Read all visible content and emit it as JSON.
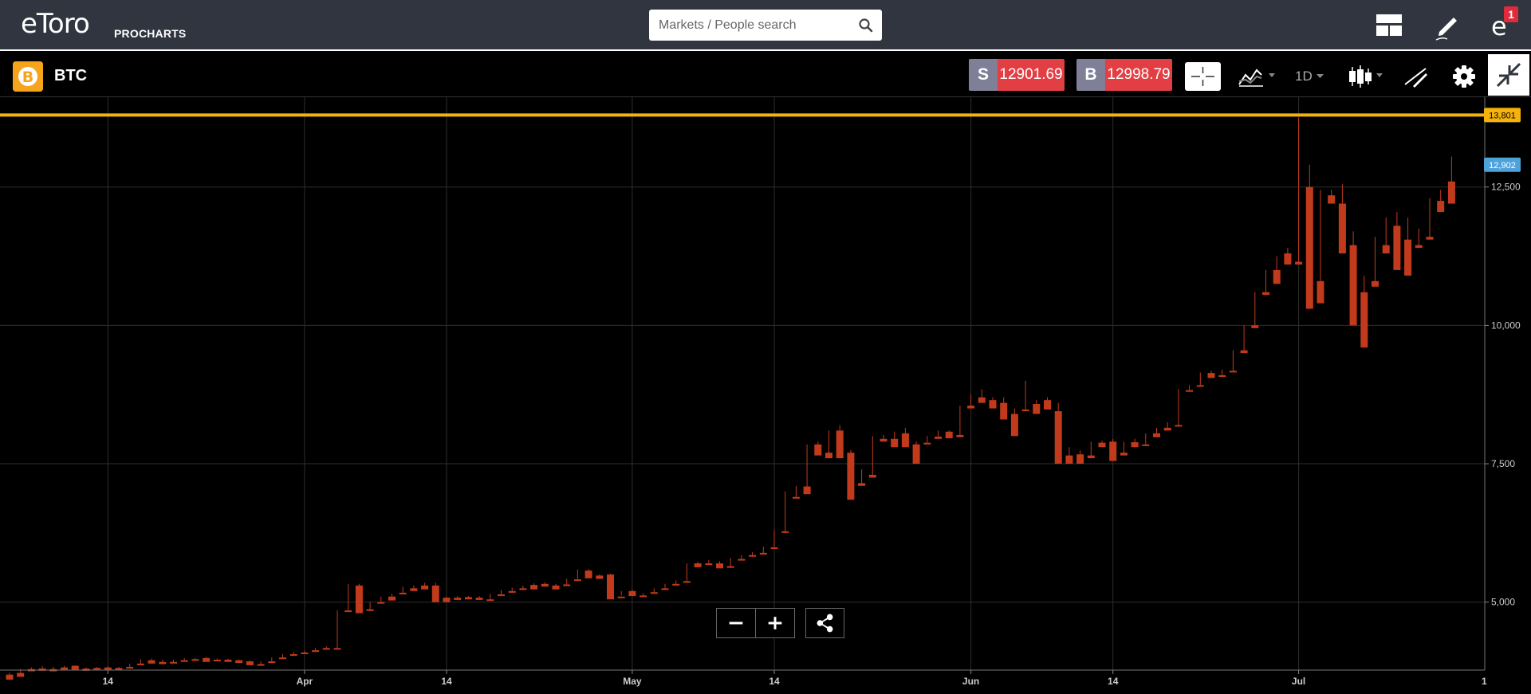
{
  "header": {
    "logo_text": "eToro",
    "logo_sub": "PROCHARTS",
    "search_placeholder": "Markets / People search",
    "notification_count": "1",
    "icons": [
      "layout-icon",
      "pencil-icon",
      "etoro-account-icon"
    ]
  },
  "toolbar": {
    "symbol": "BTC",
    "coin_icon": "bitcoin-icon",
    "sell_tag": "S",
    "sell_price": "12901.69",
    "buy_tag": "B",
    "buy_price": "12998.79",
    "timeframe": "1D",
    "icons": [
      "crosshair-icon",
      "indicators-icon",
      "candlestick-icon",
      "draw-icon",
      "gear-icon",
      "collapse-icon"
    ]
  },
  "colors": {
    "up": "#a6d58c",
    "down": "#c23a1c",
    "accent_line": "#f5b20a",
    "price_tag": "#4ea2db",
    "sell_bg": "#7f7f98",
    "price_bg": "#e23f44"
  },
  "chart_data": {
    "type": "candlestick",
    "y_ticks": [
      5000,
      7500,
      10000,
      12500
    ],
    "y_tick_labels": [
      "5,000",
      "7,500",
      "10,000",
      "12,500"
    ],
    "ylim": [
      3700,
      13950
    ],
    "x_tick_labels": [
      {
        "label": "14",
        "index": 9
      },
      {
        "label": "Apr",
        "index": 27
      },
      {
        "label": "14",
        "index": 40
      },
      {
        "label": "May",
        "index": 57
      },
      {
        "label": "14",
        "index": 70
      },
      {
        "label": "Jun",
        "index": 88
      },
      {
        "label": "14",
        "index": 101
      },
      {
        "label": "Jul",
        "index": 118
      }
    ],
    "x_edge_label": "1",
    "horizontal_line": {
      "value": 13801,
      "label": "13,801"
    },
    "last_price": {
      "value": 12902,
      "label": "12,902"
    },
    "candles": [
      [
        3690,
        3720,
        3630,
        3600
      ],
      [
        3720,
        3790,
        3700,
        3650
      ],
      [
        3790,
        3820,
        3780,
        3750
      ],
      [
        3800,
        3840,
        3790,
        3760
      ],
      [
        3790,
        3830,
        3780,
        3750
      ],
      [
        3820,
        3850,
        3800,
        3780
      ],
      [
        3850,
        3860,
        3800,
        3780
      ],
      [
        3800,
        3820,
        3790,
        3760
      ],
      [
        3810,
        3830,
        3800,
        3780
      ],
      [
        3820,
        3840,
        3800,
        3780
      ],
      [
        3810,
        3830,
        3790,
        3770
      ],
      [
        3830,
        3890,
        3820,
        3800
      ],
      [
        3890,
        3970,
        3880,
        3860
      ],
      [
        3950,
        3980,
        3910,
        3890
      ],
      [
        3920,
        3960,
        3900,
        3880
      ],
      [
        3920,
        3960,
        3910,
        3890
      ],
      [
        3950,
        3990,
        3940,
        3920
      ],
      [
        3970,
        3990,
        3960,
        3940
      ],
      [
        3990,
        4010,
        3950,
        3920
      ],
      [
        3960,
        3980,
        3950,
        3930
      ],
      [
        3960,
        3980,
        3940,
        3920
      ],
      [
        3950,
        3960,
        3920,
        3900
      ],
      [
        3930,
        3950,
        3880,
        3860
      ],
      [
        3880,
        3930,
        3870,
        3850
      ],
      [
        3930,
        4000,
        3920,
        3900
      ],
      [
        4000,
        4060,
        3990,
        3970
      ],
      [
        4060,
        4100,
        4050,
        4030
      ],
      [
        4090,
        4120,
        4080,
        4060
      ],
      [
        4130,
        4170,
        4120,
        4100
      ],
      [
        4170,
        4200,
        4160,
        4140
      ],
      [
        4170,
        4850,
        4160,
        4150
      ],
      [
        4850,
        5330,
        4840,
        4830
      ],
      [
        5300,
        5330,
        4850,
        4800
      ],
      [
        4870,
        5000,
        4860,
        4840
      ],
      [
        5000,
        5100,
        4990,
        4980
      ],
      [
        5100,
        5150,
        5050,
        5030
      ],
      [
        5170,
        5280,
        5160,
        5140
      ],
      [
        5250,
        5300,
        5220,
        5200
      ],
      [
        5300,
        5350,
        5250,
        5230
      ],
      [
        5300,
        5350,
        5070,
        5000
      ],
      [
        5080,
        5100,
        5050,
        5000
      ],
      [
        5080,
        5110,
        5060,
        5040
      ],
      [
        5090,
        5110,
        5070,
        5050
      ],
      [
        5080,
        5110,
        5060,
        5040
      ],
      [
        5050,
        5150,
        5040,
        5020
      ],
      [
        5140,
        5220,
        5130,
        5110
      ],
      [
        5200,
        5260,
        5190,
        5170
      ],
      [
        5250,
        5300,
        5240,
        5220
      ],
      [
        5310,
        5340,
        5250,
        5230
      ],
      [
        5330,
        5360,
        5300,
        5280
      ],
      [
        5300,
        5330,
        5250,
        5230
      ],
      [
        5320,
        5420,
        5310,
        5290
      ],
      [
        5410,
        5590,
        5400,
        5380
      ],
      [
        5570,
        5600,
        5450,
        5430
      ],
      [
        5480,
        5500,
        5440,
        5420
      ],
      [
        5500,
        5510,
        5100,
        5050
      ],
      [
        5100,
        5200,
        5120,
        5080
      ],
      [
        5200,
        5230,
        5130,
        5110
      ],
      [
        5120,
        5160,
        5110,
        5090
      ],
      [
        5180,
        5250,
        5170,
        5150
      ],
      [
        5250,
        5330,
        5240,
        5220
      ],
      [
        5330,
        5390,
        5320,
        5300
      ],
      [
        5380,
        5700,
        5370,
        5350
      ],
      [
        5700,
        5730,
        5650,
        5630
      ],
      [
        5700,
        5760,
        5690,
        5670
      ],
      [
        5700,
        5740,
        5630,
        5610
      ],
      [
        5650,
        5800,
        5640,
        5620
      ],
      [
        5780,
        5850,
        5770,
        5750
      ],
      [
        5850,
        5900,
        5840,
        5820
      ],
      [
        5890,
        6000,
        5880,
        5860
      ],
      [
        5990,
        6300,
        5980,
        5960
      ],
      [
        6280,
        7000,
        6270,
        6250
      ],
      [
        6900,
        7100,
        6890,
        6870
      ],
      [
        7090,
        7850,
        7080,
        6950
      ],
      [
        7850,
        7900,
        7700,
        7650
      ],
      [
        7700,
        8100,
        7690,
        7600
      ],
      [
        8100,
        8200,
        7650,
        7600
      ],
      [
        7700,
        7750,
        7100,
        6850
      ],
      [
        7150,
        7400,
        7140,
        7100
      ],
      [
        7300,
        8000,
        7290,
        7250
      ],
      [
        7950,
        8020,
        7940,
        7900
      ],
      [
        7950,
        8080,
        7940,
        7800
      ],
      [
        8050,
        8150,
        7850,
        7800
      ],
      [
        7850,
        7900,
        7830,
        7500
      ],
      [
        7880,
        8000,
        7870,
        7850
      ],
      [
        7990,
        8100,
        7980,
        7950
      ],
      [
        8080,
        8100,
        7980,
        7960
      ],
      [
        8020,
        8550,
        8010,
        7980
      ],
      [
        8550,
        8750,
        8540,
        8500
      ],
      [
        8700,
        8850,
        8620,
        8600
      ],
      [
        8650,
        8700,
        8600,
        8500
      ],
      [
        8600,
        8700,
        8400,
        8300
      ],
      [
        8400,
        8500,
        8390,
        8000
      ],
      [
        8480,
        9000,
        8470,
        8450
      ],
      [
        8580,
        8650,
        8480,
        8400
      ],
      [
        8650,
        8700,
        8500,
        8480
      ],
      [
        8450,
        8600,
        7600,
        7500
      ],
      [
        7650,
        7800,
        7640,
        7500
      ],
      [
        7670,
        7740,
        7650,
        7500
      ],
      [
        7650,
        7900,
        7640,
        7600
      ],
      [
        7880,
        7920,
        7820,
        7800
      ],
      [
        7900,
        7950,
        7850,
        7550
      ],
      [
        7700,
        7900,
        7690,
        7650
      ],
      [
        7890,
        7950,
        7850,
        7800
      ],
      [
        7850,
        8050,
        7840,
        7820
      ],
      [
        8050,
        8150,
        8000,
        7980
      ],
      [
        8150,
        8250,
        8140,
        8100
      ],
      [
        8200,
        8850,
        8190,
        8180
      ],
      [
        8830,
        8920,
        8820,
        8800
      ],
      [
        8920,
        9150,
        8910,
        8900
      ],
      [
        9140,
        9180,
        9080,
        9050
      ],
      [
        9100,
        9200,
        9090,
        9070
      ],
      [
        9180,
        9550,
        9170,
        9150
      ],
      [
        9550,
        10000,
        9540,
        9500
      ],
      [
        10000,
        10600,
        9990,
        9950
      ],
      [
        10600,
        11000,
        10590,
        10550
      ],
      [
        11000,
        11250,
        10800,
        10750
      ],
      [
        11300,
        11400,
        11200,
        11100
      ],
      [
        11150,
        13750,
        11140,
        11100
      ],
      [
        12500,
        12900,
        10900,
        10300
      ],
      [
        10800,
        12450,
        10650,
        10400
      ],
      [
        12350,
        12450,
        12300,
        12200
      ],
      [
        12200,
        12550,
        11400,
        11300
      ],
      [
        11450,
        11700,
        10600,
        10000
      ],
      [
        10600,
        10900,
        10550,
        9600
      ],
      [
        10800,
        11600,
        10790,
        10700
      ],
      [
        11450,
        11950,
        11440,
        11300
      ],
      [
        11800,
        12050,
        11250,
        11000
      ],
      [
        11550,
        11950,
        11100,
        10900
      ],
      [
        11450,
        11750,
        11440,
        11400
      ],
      [
        11600,
        12300,
        11590,
        11550
      ],
      [
        12250,
        12450,
        12150,
        12050
      ],
      [
        12600,
        13050,
        12300,
        12200
      ]
    ]
  },
  "chart_controls": {
    "icons": [
      "zoom-out-icon",
      "zoom-in-icon",
      "share-icon"
    ]
  }
}
